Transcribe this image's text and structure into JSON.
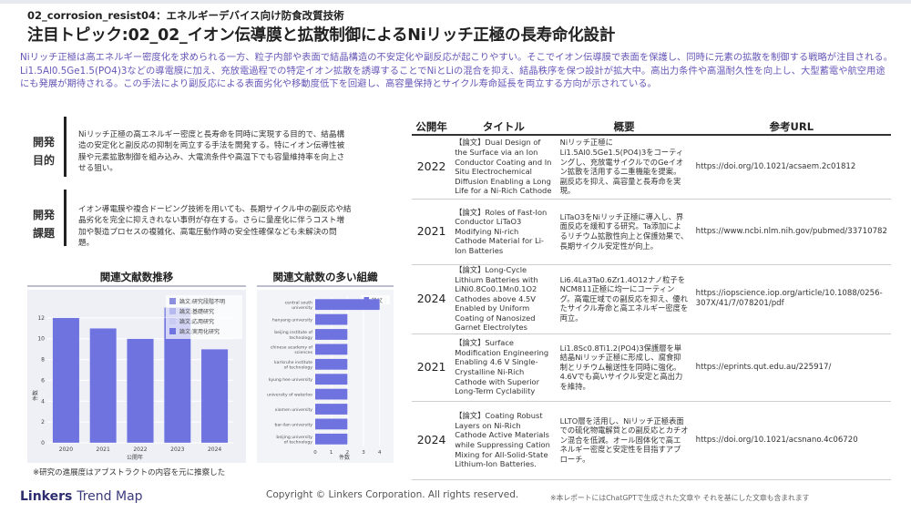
{
  "header": {
    "subtitle": "02_corrosion_resist04：エネルギーデバイス向け防食改質技術",
    "title": "注目トピック:02_02_イオン伝導膜と拡散制御によるNiリッチ正極の長寿命化設計",
    "summary": "Niリッチ正極は高エネルギー密度化を求められる一方、粒子内部や表面で結晶構造の不安定化や副反応が起こりやすい。そこでイオン伝導膜で表面を保護し、同時に元素の拡散を制御する戦略が注目される。Li1.5Al0.5Ge1.5(PO4)3などの導電膜に加え、充放電過程での特定イオン拡散を誘導することでNiとLiの混合を抑え、結晶秩序を保つ設計が拡大中。高出力条件や高温耐久性を向上し、大型蓄電や航空用途にも発展が期待される。この手法により副反応による表面劣化や移動度低下を回避し、高容量保持とサイクル寿命延長を両立する方向が示されている。"
  },
  "purpose": {
    "label_line1": "開発",
    "label_line2": "目的",
    "text": "Niリッチ正極の高エネルギー密度と長寿命を同時に実現する目的で、結晶構造の安定化と副反応の抑制を両立する手法を開発する。特にイオン伝導性被膜や元素拡散制御を組み込み、大電流条件や高温下でも容量維持率を向上させる狙い。"
  },
  "issue": {
    "label_line1": "開発",
    "label_line2": "課題",
    "text": "イオン導電膜や複合ドーピング技術を用いても、長期サイクル中の副反応や結晶劣化を完全に抑えきれない事例が存在する。さらに量産化に伴うコスト増加や製造プロセスの複雑化、高電圧動作時の安全性確保なども未解決の問題。"
  },
  "trend_chart": {
    "heading": "関連文献数推移",
    "legend": [
      "論文:研究段階不明",
      "論文:基礎研究",
      "論文:応用研究",
      "論文:実用化研究"
    ],
    "colors": {
      "unknown": "#8b8fe0",
      "basic": "#b6b9f0",
      "applied": "#c9cbf3",
      "practical": "#6f73df"
    }
  },
  "org_chart": {
    "heading": "関連文献数の多い組織",
    "legend": "論文"
  },
  "chart_data": [
    {
      "type": "bar",
      "title": "関連文献数推移",
      "categories": [
        "2020",
        "2021",
        "2022",
        "2023",
        "2024"
      ],
      "series": [
        {
          "name": "論文:実用化研究",
          "values": [
            12,
            11,
            10,
            12,
            9
          ]
        },
        {
          "name": "論文:研究段階不明",
          "values": [
            0,
            0,
            0,
            1,
            0
          ]
        }
      ],
      "xlabel": "公開年",
      "ylabel": "件数",
      "yticks": [
        0,
        2,
        4,
        6,
        8,
        10,
        12
      ],
      "ylim": [
        0,
        14
      ]
    },
    {
      "type": "bar",
      "orientation": "horizontal",
      "title": "関連文献数の多い組織",
      "categories": [
        "central south university",
        "hanyang university",
        "beijing institute of technology",
        "chinese academy of sciences",
        "karlsruhe institute of technology",
        "kyung hee university",
        "university of waterloo",
        "xiamen university",
        "bar-ilan university",
        "beijing university of technology"
      ],
      "series": [
        {
          "name": "論文",
          "values": [
            4,
            2,
            2,
            2,
            2,
            2,
            2,
            2,
            2,
            2
          ]
        }
      ],
      "xlabel": "件数",
      "xticks": [
        0,
        1,
        2,
        3,
        4
      ],
      "xlim": [
        0,
        4.3
      ]
    }
  ],
  "note": "※研究の進展度はアブストラクトの内容を元に推察した",
  "table": {
    "headers": [
      "公開年",
      "タイトル",
      "概要",
      "参考URL"
    ],
    "rows": [
      {
        "year": "2022",
        "title": "【論文】Dual Design of the Surface via an Ion Conductor Coating and In Situ Electrochemical Diffusion Enabling a Long Life for a Ni-Rich Cathode",
        "summary": "Niリッチ正極にLi1.5Al0.5Ge1.5(PO4)3をコーティングし、充放電サイクルでのGeイオン拡散を活用する二重機能を提案。副反応を抑え、高容量と長寿命を実現。",
        "url": "https://doi.org/10.1021/acsaem.2c01812"
      },
      {
        "year": "2021",
        "title": "【論文】Roles of Fast-Ion Conductor LiTaO3 Modifying Ni-rich Cathode Material for Li-Ion Batteries",
        "summary": "LiTaO3をNiリッチ正極に導入し、界面反応を緩和する研究。Ta添加によるリチウム拡散性向上と保護効果で、長期サイクル安定性が向上。",
        "url": "https://www.ncbi.nlm.nih.gov/pubmed/33710782"
      },
      {
        "year": "2024",
        "title": "【論文】Long-Cycle Lithium Batteries with LiNi0.8Co0.1Mn0.1O2 Cathodes above 4.5V Enabled by Uniform Coating of Nanosized Garnet Electrolytes",
        "summary": "Li6.4La3Ta0.6Zr1.4O12ナノ粒子をNCM811正極に均一にコーティング。高電圧域での副反応を抑え、優れたサイクル寿命と高エネルギー密度を両立。",
        "url": "https://iopscience.iop.org/article/10.1088/0256-307X/41/7/078201/pdf"
      },
      {
        "year": "2021",
        "title": "【論文】Surface Modification Engineering Enabling 4.6 V Single-Crystalline Ni-Rich Cathode with Superior Long-Term Cyclability",
        "summary": "Li1.8Sc0.8Ti1.2(PO4)3保護層を単結晶Niリッチ正極に形成し、腐食抑制とリチウム輸送性を同時に強化。4.6Vでも高いサイクル安定と高出力を維持。",
        "url": "https://eprints.qut.edu.au/225917/"
      },
      {
        "year": "2024",
        "title": "【論文】Coating Robust Layers on Ni-Rich Cathode Active Materials while Suppressing Cation Mixing for All-Solid-State Lithium-Ion Batteries.",
        "summary": "LLTO層を活用し、Niリッチ正極表面での硫化物電解質との副反応とカチオン混合を低減。オール固体化で高エネルギー密度と安定性を目指すアプローチ。",
        "url": "https://doi.org/10.1021/acsnano.4c06720"
      }
    ]
  },
  "footer": {
    "logo_main": "Linkers",
    "logo_sub": "Trend Map",
    "copyright": "Copyright © Linkers Corporation. All rights reserved.",
    "disclaimer": "※本レポートにはChatGPTで生成された文章や それを基にした文章も含まれます"
  }
}
